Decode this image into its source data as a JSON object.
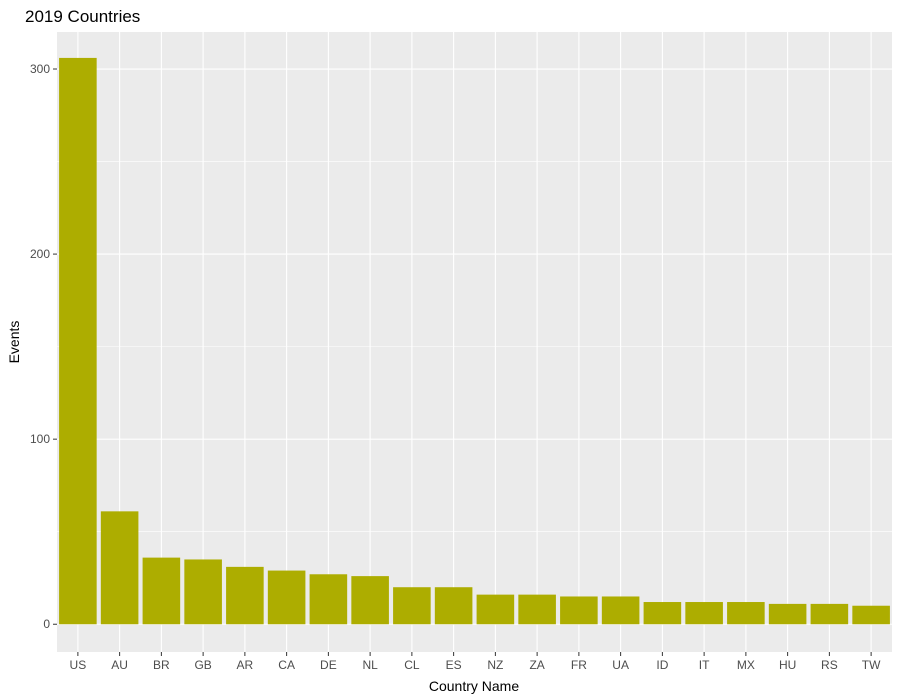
{
  "chart_data": {
    "type": "bar",
    "title": "2019 Countries",
    "xlabel": "Country Name",
    "ylabel": "Events",
    "categories": [
      "US",
      "AU",
      "BR",
      "GB",
      "AR",
      "CA",
      "DE",
      "NL",
      "CL",
      "ES",
      "NZ",
      "ZA",
      "FR",
      "UA",
      "ID",
      "IT",
      "MX",
      "HU",
      "RS",
      "TW"
    ],
    "values": [
      306,
      61,
      36,
      35,
      31,
      29,
      27,
      26,
      20,
      20,
      16,
      16,
      15,
      15,
      12,
      12,
      12,
      11,
      11,
      10
    ],
    "ylim": [
      -15,
      320
    ],
    "yticks": [
      0,
      100,
      200,
      300
    ],
    "grid": true,
    "legend": "none",
    "colors": {
      "bar": "#ADAD00",
      "panel": "#EBEBEB",
      "gridline": "#FFFFFF",
      "tick_text": "#4D4D4D",
      "tick_mark": "#333333"
    }
  }
}
